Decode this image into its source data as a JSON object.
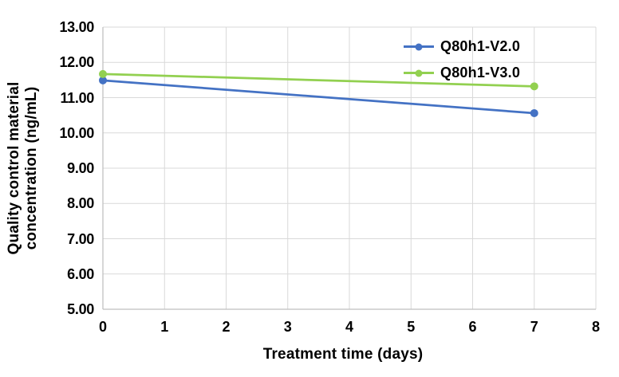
{
  "chart_data": {
    "type": "line",
    "title": "",
    "xlabel": "Treatment time (days)",
    "ylabel": "Quality control material concentration (ng/mL)",
    "ylabel_lines": [
      "Quality control material",
      "concentration (ng/mL)"
    ],
    "x": [
      0,
      7
    ],
    "series": [
      {
        "name": "Q80h1-V2.0",
        "color": "#4472C4",
        "values": [
          11.49,
          10.56
        ]
      },
      {
        "name": "Q80h1-V3.0",
        "color": "#92D050",
        "values": [
          11.67,
          11.32
        ]
      }
    ],
    "xlim": [
      0,
      8
    ],
    "ylim": [
      5,
      13
    ],
    "x_ticks": [
      0,
      1,
      2,
      3,
      4,
      5,
      6,
      7,
      8
    ],
    "y_ticks": [
      "13.00",
      "12.00",
      "11.00",
      "10.00",
      "9.00",
      "8.00",
      "7.00",
      "6.00",
      "5.00"
    ],
    "grid": true,
    "legend_position": "top-right",
    "marker": "circle",
    "colors": {
      "gridline": "#D9D9D9",
      "axis_line": "#BFBFBF",
      "text": "#000000",
      "background": "#FFFFFF"
    }
  }
}
